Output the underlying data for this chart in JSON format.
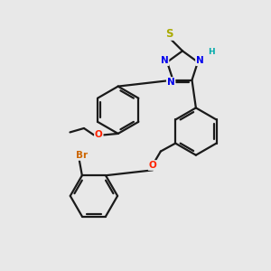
{
  "background_color": "#e8e8e8",
  "bond_color": "#1a1a1a",
  "bond_width": 1.6,
  "atom_colors": {
    "N": "#0000ee",
    "O": "#ff2200",
    "S": "#aaaa00",
    "H": "#00aaaa",
    "Br": "#cc6600",
    "C": "#1a1a1a"
  }
}
